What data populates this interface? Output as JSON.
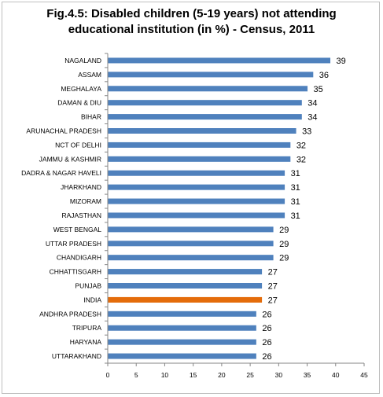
{
  "title_line1": "Fig.4.5: Disabled children (5-19 years) not attending",
  "title_line2": "educational institution (in %) - Census, 2011",
  "chart_data": {
    "type": "bar",
    "orientation": "horizontal",
    "title": "Fig.4.5: Disabled children (5-19 years) not attending educational institution (in %) - Census, 2011",
    "categories": [
      "NAGALAND",
      "ASSAM",
      "MEGHALAYA",
      "DAMAN & DIU",
      "BIHAR",
      "ARUNACHAL PRADESH",
      "NCT OF DELHI",
      "JAMMU & KASHMIR",
      "DADRA & NAGAR HAVELI",
      "JHARKHAND",
      "MIZORAM",
      "RAJASTHAN",
      "WEST BENGAL",
      "UTTAR PRADESH",
      "CHANDIGARH",
      "CHHATTISGARH",
      "PUNJAB",
      "INDIA",
      "ANDHRA PRADESH",
      "TRIPURA",
      "HARYANA",
      "UTTARAKHAND"
    ],
    "values": [
      39,
      36,
      35,
      34,
      34,
      33,
      32,
      32,
      31,
      31,
      31,
      31,
      29,
      29,
      29,
      27,
      27,
      27,
      26,
      26,
      26,
      26
    ],
    "highlight_category": "INDIA",
    "colors": {
      "bar": "#4F81BD",
      "highlight": "#E46C0A",
      "axis": "#868686"
    },
    "xlim": [
      0,
      45
    ],
    "xticks": [
      0,
      5,
      10,
      15,
      20,
      25,
      30,
      35,
      40,
      45
    ],
    "xlabel": "",
    "ylabel": "",
    "grid": false,
    "data_labels": true
  }
}
